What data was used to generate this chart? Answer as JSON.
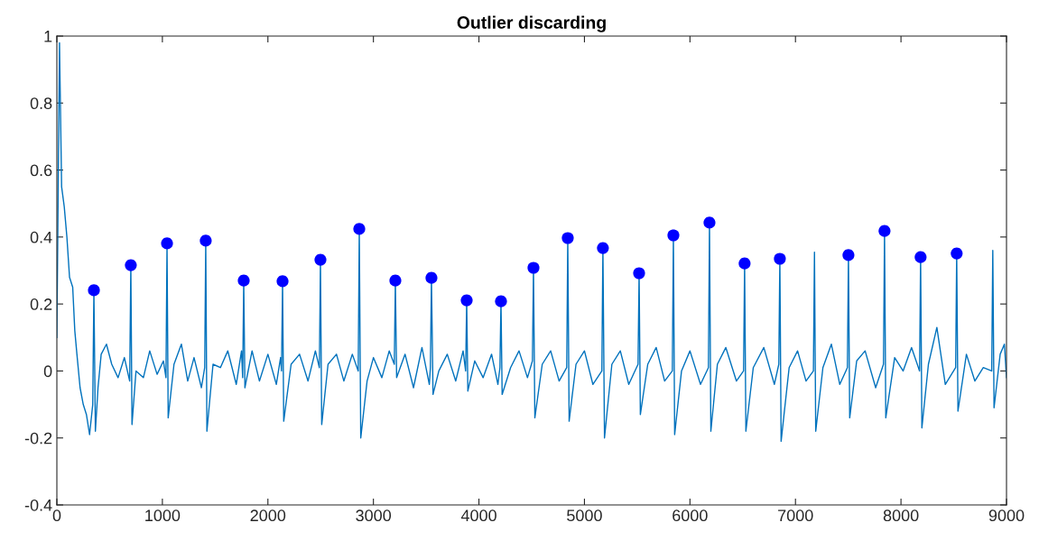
{
  "chart_data": {
    "type": "line",
    "title": "Outlier discarding",
    "xlim": [
      0,
      9000
    ],
    "xticks": [
      0,
      1000,
      2000,
      3000,
      4000,
      5000,
      6000,
      7000,
      8000,
      9000
    ],
    "ylim": [
      -0.4,
      1
    ],
    "yticks": [
      -0.4,
      -0.2,
      0,
      0.2,
      0.4,
      0.6,
      0.8,
      1
    ],
    "grid": false,
    "series": [
      {
        "color": "#0072bd",
        "marker": "none",
        "line_style": "solid",
        "x": [
          0,
          25,
          45,
          70,
          95,
          120,
          150,
          170,
          190,
          220,
          250,
          280,
          310,
          340,
          351,
          365,
          390,
          420,
          470,
          520,
          580,
          640,
          690,
          701,
          712,
          750,
          820,
          880,
          950,
          1010,
          1034,
          1044,
          1055,
          1110,
          1180,
          1240,
          1300,
          1370,
          1401,
          1411,
          1422,
          1480,
          1550,
          1620,
          1700,
          1750,
          1761,
          1771,
          1782,
          1850,
          1920,
          2000,
          2080,
          2120,
          2129,
          2139,
          2150,
          2220,
          2300,
          2380,
          2450,
          2488,
          2498,
          2510,
          2570,
          2650,
          2720,
          2800,
          2856,
          2866,
          2880,
          2940,
          3000,
          3080,
          3150,
          3198,
          3208,
          3220,
          3300,
          3380,
          3460,
          3530,
          3540,
          3550,
          3565,
          3620,
          3700,
          3780,
          3850,
          3874,
          3884,
          3895,
          3960,
          4040,
          4120,
          4180,
          4199,
          4209,
          4220,
          4300,
          4380,
          4460,
          4507,
          4517,
          4530,
          4600,
          4680,
          4760,
          4832,
          4842,
          4855,
          4920,
          5000,
          5080,
          5165,
          5175,
          5190,
          5260,
          5340,
          5420,
          5508,
          5518,
          5530,
          5600,
          5680,
          5760,
          5833,
          5843,
          5855,
          5920,
          6000,
          6100,
          6175,
          6185,
          6198,
          6260,
          6340,
          6440,
          6508,
          6518,
          6530,
          6600,
          6700,
          6800,
          6842,
          6852,
          6864,
          6940,
          7020,
          7100,
          7170,
          7180,
          7192,
          7260,
          7340,
          7420,
          7492,
          7502,
          7514,
          7580,
          7660,
          7760,
          7834,
          7844,
          7856,
          7940,
          8020,
          8100,
          8176,
          8186,
          8198,
          8260,
          8340,
          8420,
          8518,
          8528,
          8540,
          8620,
          8700,
          8780,
          8860,
          8870,
          8882,
          8940,
          8980,
          9000
        ],
        "values": [
          0.1,
          0.98,
          0.55,
          0.49,
          0.4,
          0.28,
          0.25,
          0.12,
          0.05,
          -0.05,
          -0.1,
          -0.13,
          -0.19,
          -0.1,
          0.241,
          -0.18,
          -0.05,
          0.05,
          0.08,
          0.02,
          -0.02,
          0.04,
          -0.03,
          0.316,
          -0.16,
          0.0,
          -0.02,
          0.06,
          -0.01,
          0.03,
          -0.02,
          0.381,
          -0.14,
          0.02,
          0.08,
          -0.03,
          0.04,
          -0.05,
          0.01,
          0.389,
          -0.18,
          0.02,
          0.01,
          0.06,
          -0.04,
          0.06,
          -0.02,
          0.27,
          -0.05,
          0.06,
          -0.03,
          0.05,
          -0.04,
          0.04,
          0.0,
          0.268,
          -0.15,
          0.02,
          0.05,
          -0.03,
          0.06,
          0.01,
          0.332,
          -0.16,
          0.02,
          0.05,
          -0.03,
          0.05,
          0.0,
          0.424,
          -0.2,
          -0.03,
          0.04,
          -0.02,
          0.06,
          0.02,
          0.27,
          -0.02,
          0.05,
          -0.05,
          0.07,
          -0.04,
          0.01,
          0.278,
          -0.07,
          0.0,
          0.05,
          -0.03,
          0.06,
          0.0,
          0.211,
          -0.06,
          0.03,
          -0.02,
          0.05,
          -0.04,
          0.01,
          0.208,
          -0.07,
          0.01,
          0.06,
          -0.02,
          0.03,
          0.308,
          -0.14,
          0.02,
          0.06,
          -0.03,
          0.01,
          0.397,
          -0.15,
          0.02,
          0.06,
          -0.04,
          0.0,
          0.367,
          -0.2,
          0.02,
          0.06,
          -0.04,
          0.02,
          0.292,
          -0.13,
          0.02,
          0.07,
          -0.03,
          0.0,
          0.405,
          -0.19,
          0.0,
          0.06,
          -0.04,
          0.01,
          0.443,
          -0.18,
          0.02,
          0.07,
          -0.03,
          0.0,
          0.321,
          -0.18,
          0.01,
          0.07,
          -0.04,
          0.02,
          0.335,
          -0.21,
          0.01,
          0.06,
          -0.03,
          0.0,
          0.355,
          -0.18,
          0.01,
          0.08,
          -0.04,
          0.01,
          0.346,
          -0.14,
          0.03,
          0.06,
          -0.05,
          0.02,
          0.418,
          -0.14,
          0.04,
          0.0,
          0.07,
          0.0,
          0.34,
          -0.17,
          0.02,
          0.13,
          -0.04,
          0.01,
          0.351,
          -0.12,
          0.05,
          -0.03,
          0.01,
          0.0,
          0.36,
          -0.11,
          0.05,
          0.08,
          -0.02
        ]
      },
      {
        "type": "scatter",
        "color": "#0000ff",
        "marker": "circle",
        "x": [
          351,
          701,
          1044,
          1411,
          1771,
          2139,
          2498,
          2866,
          3208,
          3550,
          3884,
          4209,
          4517,
          4842,
          5175,
          5518,
          5843,
          6185,
          6518,
          6852,
          7502,
          7844,
          8186,
          8528
        ],
        "values": [
          0.241,
          0.316,
          0.381,
          0.389,
          0.27,
          0.268,
          0.332,
          0.424,
          0.27,
          0.278,
          0.211,
          0.208,
          0.308,
          0.397,
          0.367,
          0.292,
          0.405,
          0.443,
          0.321,
          0.335,
          0.346,
          0.418,
          0.34,
          0.351
        ]
      }
    ]
  }
}
